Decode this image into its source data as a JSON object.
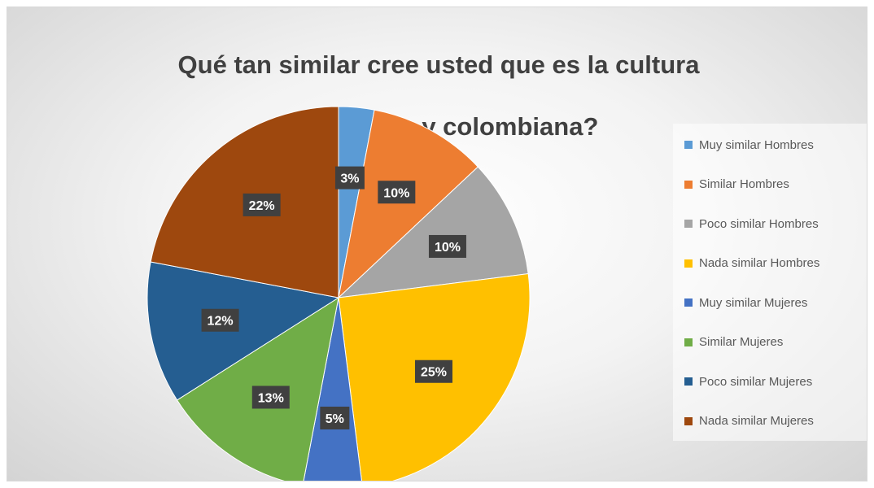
{
  "chart_data": {
    "type": "pie",
    "title": "Qué tan similar cree usted que es la cultura venezolana y colombiana?",
    "title_lines": [
      "Qué tan similar cree usted que es la cultura",
      "venezolana y colombiana?"
    ],
    "legend_position": "right",
    "slices": [
      {
        "label": "Muy similar Hombres",
        "value": 3,
        "display": "3%",
        "color": "#5b9bd5"
      },
      {
        "label": "Similar Hombres",
        "value": 10,
        "display": "10%",
        "color": "#ed7d31"
      },
      {
        "label": "Poco similar Hombres",
        "value": 10,
        "display": "10%",
        "color": "#a5a5a5"
      },
      {
        "label": "Nada similar Hombres",
        "value": 25,
        "display": "25%",
        "color": "#ffc000"
      },
      {
        "label": "Muy similar Mujeres",
        "value": 5,
        "display": "5%",
        "color": "#4472c4"
      },
      {
        "label": "Similar Mujeres",
        "value": 13,
        "display": "13%",
        "color": "#70ad47"
      },
      {
        "label": "Poco similar Mujeres",
        "value": 12,
        "display": "12%",
        "color": "#255e91"
      },
      {
        "label": "Nada similar Mujeres",
        "value": 22,
        "display": "22%",
        "color": "#9e480e"
      }
    ]
  }
}
